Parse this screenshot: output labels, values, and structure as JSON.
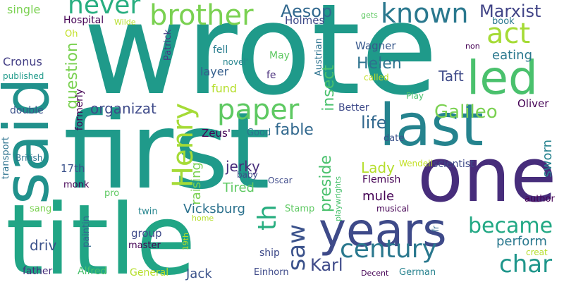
{
  "words": [
    {
      "text": "wrote",
      "color": "#1f9a8a"
    },
    {
      "text": "first",
      "color": "#1f9a8a"
    },
    {
      "text": "title",
      "color": "#21a585"
    },
    {
      "text": "one",
      "color": "#472d7b"
    },
    {
      "text": "said",
      "color": "#21918c"
    },
    {
      "text": "last",
      "color": "#25838e"
    },
    {
      "text": "years",
      "color": "#3e4a89"
    },
    {
      "text": "led",
      "color": "#4ac16d"
    },
    {
      "text": "brother",
      "color": "#7ad151"
    },
    {
      "text": "known",
      "color": "#2a788e"
    },
    {
      "text": "never",
      "color": "#28ae80"
    },
    {
      "text": "paper",
      "color": "#5ec962"
    },
    {
      "text": "Henry",
      "color": "#a5db36"
    },
    {
      "text": "act",
      "color": "#a5db36"
    },
    {
      "text": "century",
      "color": "#2a788e"
    },
    {
      "text": "became",
      "color": "#22a884"
    },
    {
      "text": "char",
      "color": "#1f968b"
    },
    {
      "text": "saw",
      "color": "#3b528b"
    },
    {
      "text": "th",
      "color": "#28ae80"
    },
    {
      "text": "Galileo",
      "color": "#7ad151"
    },
    {
      "text": "Marxist",
      "color": "#414487"
    },
    {
      "text": "life",
      "color": "#31688e"
    },
    {
      "text": "fable",
      "color": "#31688e"
    },
    {
      "text": "question",
      "color": "#7ad151"
    },
    {
      "text": "Aesop",
      "color": "#31688e"
    },
    {
      "text": "Karl",
      "color": "#3e4a89"
    },
    {
      "text": "Helen",
      "color": "#2c728e"
    },
    {
      "text": "insect",
      "color": "#4ac16d"
    },
    {
      "text": "preside",
      "color": "#4ac16d"
    },
    {
      "text": "organizat",
      "color": "#3e4a89"
    },
    {
      "text": "Taft",
      "color": "#3e4a89"
    },
    {
      "text": "eating",
      "color": "#2a788e"
    },
    {
      "text": "Lady",
      "color": "#b5de2b"
    },
    {
      "text": "sworn",
      "color": "#26828e"
    },
    {
      "text": "perform",
      "color": "#2a788e"
    },
    {
      "text": "jerky",
      "color": "#472d7b"
    },
    {
      "text": "Tired",
      "color": "#5ec962"
    },
    {
      "text": "mule",
      "color": "#440154"
    },
    {
      "text": "raising",
      "color": "#7ad151"
    },
    {
      "text": "Vicksburg",
      "color": "#2c728e"
    },
    {
      "text": "driv",
      "color": "#3b528b"
    },
    {
      "text": "Jack",
      "color": "#3b528b"
    },
    {
      "text": "single",
      "color": "#7ad151"
    },
    {
      "text": "Hospital",
      "color": "#440154"
    },
    {
      "text": "Wilde",
      "color": "#b5de2b"
    },
    {
      "text": "Oh",
      "color": "#c2df23"
    },
    {
      "text": "Cronus",
      "color": "#433e85"
    },
    {
      "text": "layer",
      "color": "#355f8d"
    },
    {
      "text": "fell",
      "color": "#287c8e"
    },
    {
      "text": "fund",
      "color": "#b5de2b"
    },
    {
      "text": "novel'",
      "color": "#25858e"
    },
    {
      "text": "May",
      "color": "#5ec962"
    },
    {
      "text": "Wagner",
      "color": "#38588c"
    },
    {
      "text": "Holmes",
      "color": "#3e4a89"
    },
    {
      "text": "Oliver",
      "color": "#440154"
    },
    {
      "text": "Better",
      "color": "#3e4a89"
    },
    {
      "text": "Play",
      "color": "#4ac16d"
    },
    {
      "text": "called",
      "color": "#c2df23"
    },
    {
      "text": "fe",
      "color": "#472d7b"
    },
    {
      "text": "gets",
      "color": "#5ec962"
    },
    {
      "text": "book",
      "color": "#2a788e"
    },
    {
      "text": "non",
      "color": "#440154"
    },
    {
      "text": "published",
      "color": "#1f9a8a"
    },
    {
      "text": "double",
      "color": "#3b528b"
    },
    {
      "text": "formerly",
      "color": "#440154"
    },
    {
      "text": "Patrick",
      "color": "#443a83"
    },
    {
      "text": "Austrian",
      "color": "#2c728e"
    },
    {
      "text": "Zeus'",
      "color": "#440154"
    },
    {
      "text": "Good",
      "color": "#2c728e"
    },
    {
      "text": "date",
      "color": "#3b528b"
    },
    {
      "text": "British",
      "color": "#2c728e"
    },
    {
      "text": "transport",
      "color": "#2c728e"
    },
    {
      "text": "17th",
      "color": "#3b528b"
    },
    {
      "text": "monk",
      "color": "#440154"
    },
    {
      "text": "Wendell",
      "color": "#c2df23"
    },
    {
      "text": "scientist",
      "color": "#3e4a89"
    },
    {
      "text": "baby",
      "color": "#3e4a89"
    },
    {
      "text": "Oscar",
      "color": "#3e4a89"
    },
    {
      "text": "Flemish",
      "color": "#440154"
    },
    {
      "text": "pro",
      "color": "#5ec962"
    },
    {
      "text": "sang",
      "color": "#7ad151"
    },
    {
      "text": "Stamp",
      "color": "#5ec962"
    },
    {
      "text": "playwrights",
      "color": "#4ac16d"
    },
    {
      "text": "musical",
      "color": "#440154"
    },
    {
      "text": "author",
      "color": "#440154"
    },
    {
      "text": "twin",
      "color": "#25858e"
    },
    {
      "text": "home",
      "color": "#b5de2b"
    },
    {
      "text": "group",
      "color": "#3e4a89"
    },
    {
      "text": "master",
      "color": "#440154"
    },
    {
      "text": "19th",
      "color": "#b5de2b"
    },
    {
      "text": "paintin",
      "color": "#31688e"
    },
    {
      "text": "ship",
      "color": "#3e4a89"
    },
    {
      "text": "fr",
      "color": "#31688e"
    },
    {
      "text": "creat",
      "color": "#b5de2b"
    },
    {
      "text": "father",
      "color": "#472d7b"
    },
    {
      "text": "Alfred",
      "color": "#4ac16d"
    },
    {
      "text": "General",
      "color": "#b5de2b"
    },
    {
      "text": "Einhorn",
      "color": "#3e4a89"
    },
    {
      "text": "Decent",
      "color": "#440154"
    },
    {
      "text": "German",
      "color": "#26828e"
    }
  ]
}
